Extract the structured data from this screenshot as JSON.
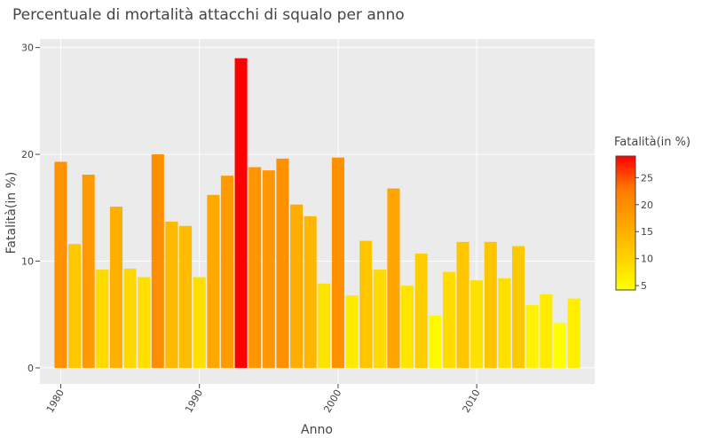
{
  "chart_data": {
    "type": "bar",
    "title": "Percentuale di mortalità attacchi di squalo per anno",
    "xlabel": "Anno",
    "ylabel": "Fatalità(in %)",
    "xlim": [
      1978.5,
      2018.5
    ],
    "ylim": [
      -1.5,
      30.8
    ],
    "xticks": [
      1980,
      1990,
      2000,
      2010
    ],
    "yticks": [
      0,
      10,
      20,
      30
    ],
    "grid": true,
    "colorscale": [
      "#ffff00",
      "#ffd000",
      "#ffa500",
      "#ff7a00",
      "#ff0000"
    ],
    "color_range": [
      4.2,
      29.0
    ],
    "colorbar": {
      "title": "Fatalità(in %)",
      "ticks": [
        5,
        10,
        15,
        20,
        25
      ]
    },
    "categories": [
      1980,
      1981,
      1982,
      1983,
      1984,
      1985,
      1986,
      1987,
      1988,
      1989,
      1990,
      1991,
      1992,
      1993,
      1994,
      1995,
      1996,
      1997,
      1998,
      1999,
      2000,
      2001,
      2002,
      2003,
      2004,
      2005,
      2006,
      2007,
      2008,
      2009,
      2010,
      2011,
      2012,
      2013,
      2014,
      2015,
      2016,
      2017
    ],
    "values": [
      19.3,
      11.6,
      18.1,
      9.2,
      15.1,
      9.3,
      8.5,
      20.0,
      13.7,
      13.3,
      8.5,
      16.2,
      18.0,
      29.0,
      18.8,
      18.5,
      19.6,
      15.3,
      14.2,
      7.9,
      19.7,
      6.8,
      11.9,
      9.2,
      16.8,
      7.7,
      10.7,
      4.9,
      9.0,
      11.8,
      8.2,
      11.8,
      8.4,
      11.4,
      5.9,
      6.9,
      4.2,
      6.5
    ]
  }
}
